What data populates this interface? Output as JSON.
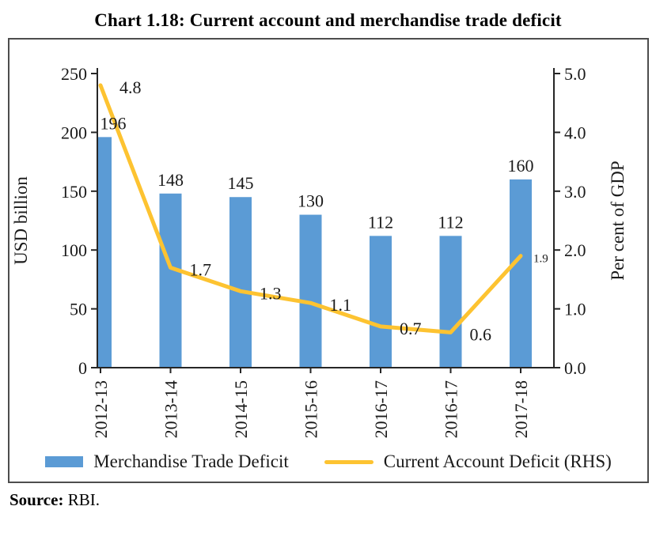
{
  "title": "Chart 1.18: Current account and merchandise trade deficit",
  "chart_data": {
    "type": "combo-bar-line",
    "categories": [
      "2012-13",
      "2013-14",
      "2014-15",
      "2015-16",
      "2016-17",
      "2016-17",
      "2017-18"
    ],
    "series": [
      {
        "name": "Merchandise Trade Deficit",
        "type": "bar",
        "axis": "left",
        "values": [
          196,
          148,
          145,
          130,
          112,
          112,
          160
        ],
        "labels": [
          "196",
          "148",
          "145",
          "130",
          "112",
          "112",
          "160"
        ],
        "color": "#5B9BD5"
      },
      {
        "name": "Current Account Deficit (RHS)",
        "type": "line",
        "axis": "right",
        "values": [
          4.8,
          1.7,
          1.3,
          1.1,
          0.7,
          0.6,
          1.9
        ],
        "labels": [
          "4.8",
          "1.7",
          "1.3",
          "1.1",
          "0.7",
          "0.6",
          "1.9"
        ],
        "color": "#FDC331"
      }
    ],
    "left_axis": {
      "label": "USD billion",
      "min": 0,
      "max": 250,
      "ticks": [
        "0",
        "50",
        "100",
        "150",
        "200",
        "250"
      ]
    },
    "right_axis": {
      "label": "Per cent of GDP",
      "min": 0,
      "max": 5,
      "ticks": [
        "0.0",
        "1.0",
        "2.0",
        "3.0",
        "4.0",
        "5.0"
      ]
    },
    "grid": false,
    "legend_position": "bottom"
  },
  "legend": {
    "items": [
      {
        "label": "Merchandise Trade Deficit",
        "swatch": "bar",
        "color": "#5B9BD5"
      },
      {
        "label": "Current Account Deficit (RHS)",
        "swatch": "line",
        "color": "#FDC331"
      }
    ]
  },
  "source": {
    "label": "Source:",
    "text": "RBI."
  }
}
